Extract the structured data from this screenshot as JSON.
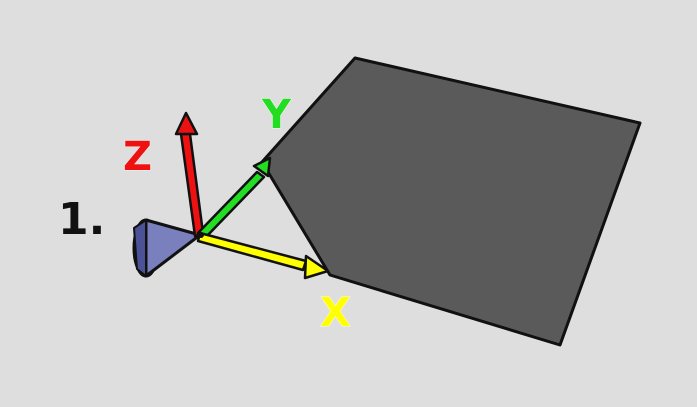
{
  "step_number": "1.",
  "axes": {
    "x": {
      "label": "X",
      "color": "#ffff00"
    },
    "y": {
      "label": "Y",
      "color": "#22dd22"
    },
    "z": {
      "label": "Z",
      "color": "#ee1111"
    }
  },
  "colors": {
    "background": "#dedede",
    "surface": "#5a5a5a",
    "edge": "#111111",
    "camera": "#6a70b0",
    "camera_dark": "#30365f",
    "label": "#111111"
  }
}
